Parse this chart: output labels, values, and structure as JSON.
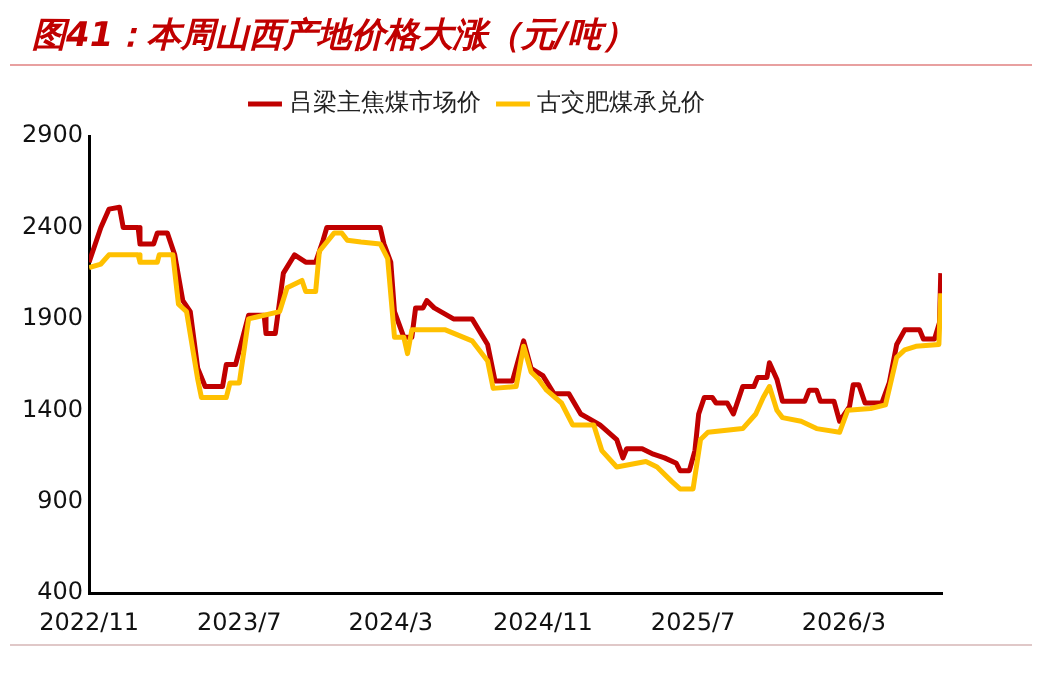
{
  "chart_data": {
    "type": "line",
    "title": "图41：本周山西产地价格大涨（元/吨）",
    "legend": "top",
    "grid": false,
    "marker": "none",
    "line_style": "solid",
    "xlim": [
      "2022-11-01",
      "2026-08-06"
    ],
    "xticks": [
      {
        "value": "2022-11-01",
        "label": "2022/11"
      },
      {
        "value": "2023-07-01",
        "label": "2023/7"
      },
      {
        "value": "2024-03-01",
        "label": "2024/3"
      },
      {
        "value": "2024-11-01",
        "label": "2024/11"
      },
      {
        "value": "2025-07-01",
        "label": "2025/7"
      },
      {
        "value": "2026-03-01",
        "label": "2026/3"
      }
    ],
    "ylim": [
      400,
      2900
    ],
    "yticks": [
      400,
      900,
      1400,
      1900,
      2400,
      2900
    ],
    "series": [
      {
        "name": "吕梁主焦煤市场价",
        "color": "#c00000",
        "x": [
          "2022-11-01",
          "2022-11-20",
          "2022-12-03",
          "2022-12-20",
          "2022-12-26",
          "2023-01-19",
          "2023-01-22",
          "2023-02-13",
          "2023-02-19",
          "2023-03-07",
          "2023-03-19",
          "2023-04-01",
          "2023-04-13",
          "2023-04-25",
          "2023-05-07",
          "2023-06-04",
          "2023-06-10",
          "2023-06-25",
          "2023-07-16",
          "2023-08-10",
          "2023-08-13",
          "2023-08-28",
          "2023-09-10",
          "2023-09-28",
          "2023-10-16",
          "2023-11-01",
          "2023-11-13",
          "2023-11-19",
          "2024-02-13",
          "2024-02-19",
          "2024-03-01",
          "2024-03-07",
          "2024-03-22",
          "2024-04-04",
          "2024-04-10",
          "2024-04-22",
          "2024-04-28",
          "2024-05-10",
          "2024-06-10",
          "2024-07-10",
          "2024-08-04",
          "2024-08-16",
          "2024-09-13",
          "2024-10-01",
          "2024-10-13",
          "2024-11-01",
          "2024-11-19",
          "2024-12-13",
          "2025-01-01",
          "2025-02-01",
          "2025-02-28",
          "2025-03-10",
          "2025-03-16",
          "2025-04-10",
          "2025-04-28",
          "2025-05-16",
          "2025-06-04",
          "2025-06-10",
          "2025-06-25",
          "2025-07-04",
          "2025-07-10",
          "2025-07-19",
          "2025-08-01",
          "2025-08-07",
          "2025-08-25",
          "2025-09-04",
          "2025-09-13",
          "2025-09-19",
          "2025-10-07",
          "2025-10-13",
          "2025-10-28",
          "2025-11-01",
          "2025-11-13",
          "2025-11-22",
          "2025-12-28",
          "2026-01-04",
          "2026-01-16",
          "2026-01-22",
          "2026-02-13",
          "2026-02-22",
          "2026-03-10",
          "2026-03-16",
          "2026-03-25",
          "2026-04-04",
          "2026-05-01",
          "2026-05-13",
          "2026-05-25",
          "2026-06-07",
          "2026-07-01",
          "2026-07-07",
          "2026-07-25",
          "2026-08-02",
          "2026-08-04"
        ],
        "values": [
          2210,
          2400,
          2500,
          2510,
          2400,
          2400,
          2310,
          2310,
          2370,
          2370,
          2250,
          2000,
          1940,
          1630,
          1530,
          1530,
          1650,
          1650,
          1920,
          1920,
          1820,
          1820,
          2150,
          2250,
          2210,
          2210,
          2330,
          2400,
          2400,
          2310,
          2210,
          1940,
          1800,
          1800,
          1960,
          1960,
          2000,
          1960,
          1900,
          1900,
          1760,
          1560,
          1560,
          1780,
          1630,
          1590,
          1490,
          1490,
          1380,
          1320,
          1240,
          1140,
          1190,
          1190,
          1160,
          1140,
          1110,
          1070,
          1070,
          1180,
          1380,
          1470,
          1470,
          1440,
          1440,
          1380,
          1470,
          1530,
          1530,
          1580,
          1580,
          1660,
          1570,
          1450,
          1450,
          1510,
          1510,
          1450,
          1450,
          1340,
          1420,
          1540,
          1540,
          1440,
          1440,
          1550,
          1760,
          1840,
          1840,
          1790,
          1790,
          1880,
          2150
        ]
      },
      {
        "name": "古交肥煤承兑价",
        "color": "#ffc000",
        "x": [
          "2022-11-01",
          "2022-11-20",
          "2022-12-03",
          "2023-01-19",
          "2023-01-22",
          "2023-02-19",
          "2023-02-22",
          "2023-03-16",
          "2023-03-25",
          "2023-04-07",
          "2023-04-25",
          "2023-05-01",
          "2023-06-10",
          "2023-06-16",
          "2023-07-01",
          "2023-07-16",
          "2023-09-04",
          "2023-09-16",
          "2023-10-10",
          "2023-10-16",
          "2023-11-01",
          "2023-11-07",
          "2023-12-01",
          "2023-12-13",
          "2023-12-22",
          "2024-01-13",
          "2024-02-13",
          "2024-02-25",
          "2024-03-07",
          "2024-03-22",
          "2024-03-28",
          "2024-04-04",
          "2024-05-28",
          "2024-07-10",
          "2024-08-04",
          "2024-08-13",
          "2024-09-19",
          "2024-10-01",
          "2024-10-13",
          "2024-10-25",
          "2024-11-07",
          "2024-12-01",
          "2024-12-19",
          "2025-01-22",
          "2025-02-04",
          "2025-02-28",
          "2025-04-16",
          "2025-05-04",
          "2025-05-28",
          "2025-06-10",
          "2025-07-01",
          "2025-07-13",
          "2025-07-25",
          "2025-09-19",
          "2025-10-10",
          "2025-10-22",
          "2025-11-01",
          "2025-11-13",
          "2025-11-22",
          "2025-12-22",
          "2026-01-16",
          "2026-02-22",
          "2026-03-07",
          "2026-04-13",
          "2026-05-07",
          "2026-05-25",
          "2026-06-07",
          "2026-06-25",
          "2026-08-01",
          "2026-08-04"
        ],
        "values": [
          2180,
          2200,
          2250,
          2250,
          2210,
          2210,
          2250,
          2250,
          1980,
          1940,
          1570,
          1470,
          1470,
          1550,
          1550,
          1900,
          1940,
          2070,
          2110,
          2050,
          2050,
          2270,
          2370,
          2370,
          2330,
          2320,
          2310,
          2230,
          1800,
          1800,
          1710,
          1840,
          1840,
          1780,
          1670,
          1520,
          1530,
          1750,
          1610,
          1570,
          1510,
          1440,
          1320,
          1320,
          1180,
          1090,
          1120,
          1090,
          1010,
          970,
          970,
          1240,
          1280,
          1300,
          1380,
          1470,
          1530,
          1400,
          1360,
          1340,
          1300,
          1280,
          1400,
          1410,
          1430,
          1690,
          1730,
          1750,
          1760,
          2040
        ]
      }
    ]
  }
}
